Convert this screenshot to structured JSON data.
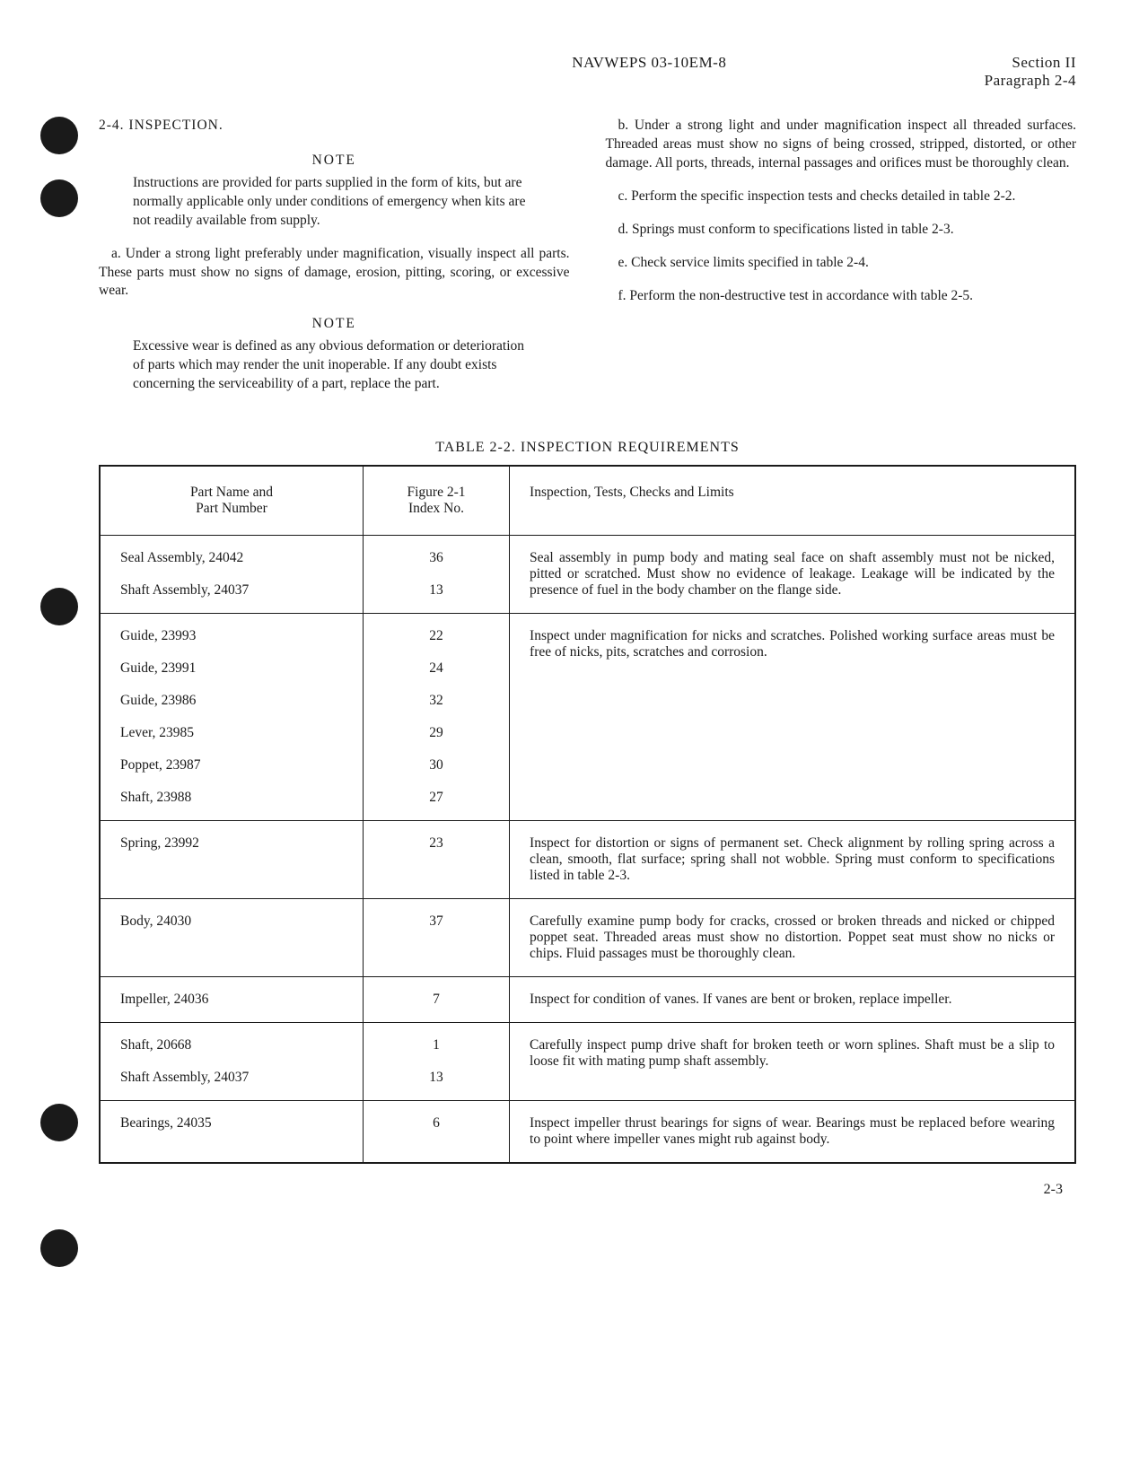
{
  "punch_holes": {
    "positions": [
      130,
      200,
      655,
      1230,
      1370
    ]
  },
  "header": {
    "doc_id": "NAVWEPS 03-10EM-8",
    "section": "Section II",
    "paragraph": "Paragraph 2-4"
  },
  "left_column": {
    "heading": "2-4. INSPECTION.",
    "note1_label": "NOTE",
    "note1_text": "Instructions are provided for parts supplied in the form of kits, but are normally applicable only under conditions of emergency when kits are not readily available from supply.",
    "para_a": "a. Under a strong light preferably under magnification, visually inspect all parts. These parts must show no signs of damage, erosion, pitting, scoring, or excessive wear.",
    "note2_label": "NOTE",
    "note2_text": "Excessive wear is defined as any obvious deformation or deterioration of parts which may render the unit inoperable. If any doubt exists concerning the serviceability of a part, replace the part."
  },
  "right_column": {
    "para_b": "b. Under a strong light and under magnification inspect all threaded surfaces. Threaded areas must show no signs of being crossed, stripped, distorted, or other damage. All ports, threads, internal passages and orifices must be thoroughly clean.",
    "para_c": "c. Perform the specific inspection tests and checks detailed in table 2-2.",
    "para_d": "d. Springs must conform to specifications listed in table 2-3.",
    "para_e": "e. Check service limits specified in table 2-4.",
    "para_f": "f. Perform the non-destructive test in accordance with table 2-5."
  },
  "table": {
    "title": "TABLE 2-2. INSPECTION REQUIREMENTS",
    "headers": {
      "col1_line1": "Part Name and",
      "col1_line2": "Part Number",
      "col2_line1": "Figure 2-1",
      "col2_line2": "Index No.",
      "col3": "Inspection, Tests, Checks and Limits"
    },
    "rows": [
      {
        "parts": [
          "Seal Assembly, 24042",
          "Shaft Assembly, 24037"
        ],
        "indices": [
          "36",
          "13"
        ],
        "inspection": "Seal assembly in pump body and mating seal face on shaft assembly must not be nicked, pitted or scratched. Must show no evidence of leakage. Leakage will be indicated by the presence of fuel in the body chamber on the flange side."
      },
      {
        "parts": [
          "Guide, 23993",
          "Guide, 23991",
          "Guide, 23986",
          "Lever, 23985",
          "Poppet, 23987",
          "Shaft, 23988"
        ],
        "indices": [
          "22",
          "24",
          "32",
          "29",
          "30",
          "27"
        ],
        "inspection": "Inspect under magnification for nicks and scratches. Polished working surface areas must be free of nicks, pits, scratches and corrosion."
      },
      {
        "parts": [
          "Spring, 23992"
        ],
        "indices": [
          "23"
        ],
        "inspection": "Inspect for distortion or signs of permanent set. Check alignment by rolling spring across a clean, smooth, flat surface; spring shall not wobble. Spring must conform to specifications listed in table 2-3."
      },
      {
        "parts": [
          "Body, 24030"
        ],
        "indices": [
          "37"
        ],
        "inspection": "Carefully examine pump body for cracks, crossed or broken threads and nicked or chipped poppet seat. Threaded areas must show no distortion. Poppet seat must show no nicks or chips. Fluid passages must be thoroughly clean."
      },
      {
        "parts": [
          "Impeller, 24036"
        ],
        "indices": [
          "7"
        ],
        "inspection": "Inspect for condition of vanes. If vanes are bent or broken, replace impeller."
      },
      {
        "parts": [
          "Shaft, 20668",
          "Shaft Assembly, 24037"
        ],
        "indices": [
          "1",
          "13"
        ],
        "inspection": "Carefully inspect pump drive shaft for broken teeth or worn splines. Shaft must be a slip to loose fit with mating pump shaft assembly."
      },
      {
        "parts": [
          "Bearings, 24035"
        ],
        "indices": [
          "6"
        ],
        "inspection": "Inspect impeller thrust bearings for signs of wear. Bearings must be replaced before wearing to point where impeller vanes might rub against body."
      }
    ]
  },
  "page_number": "2-3"
}
